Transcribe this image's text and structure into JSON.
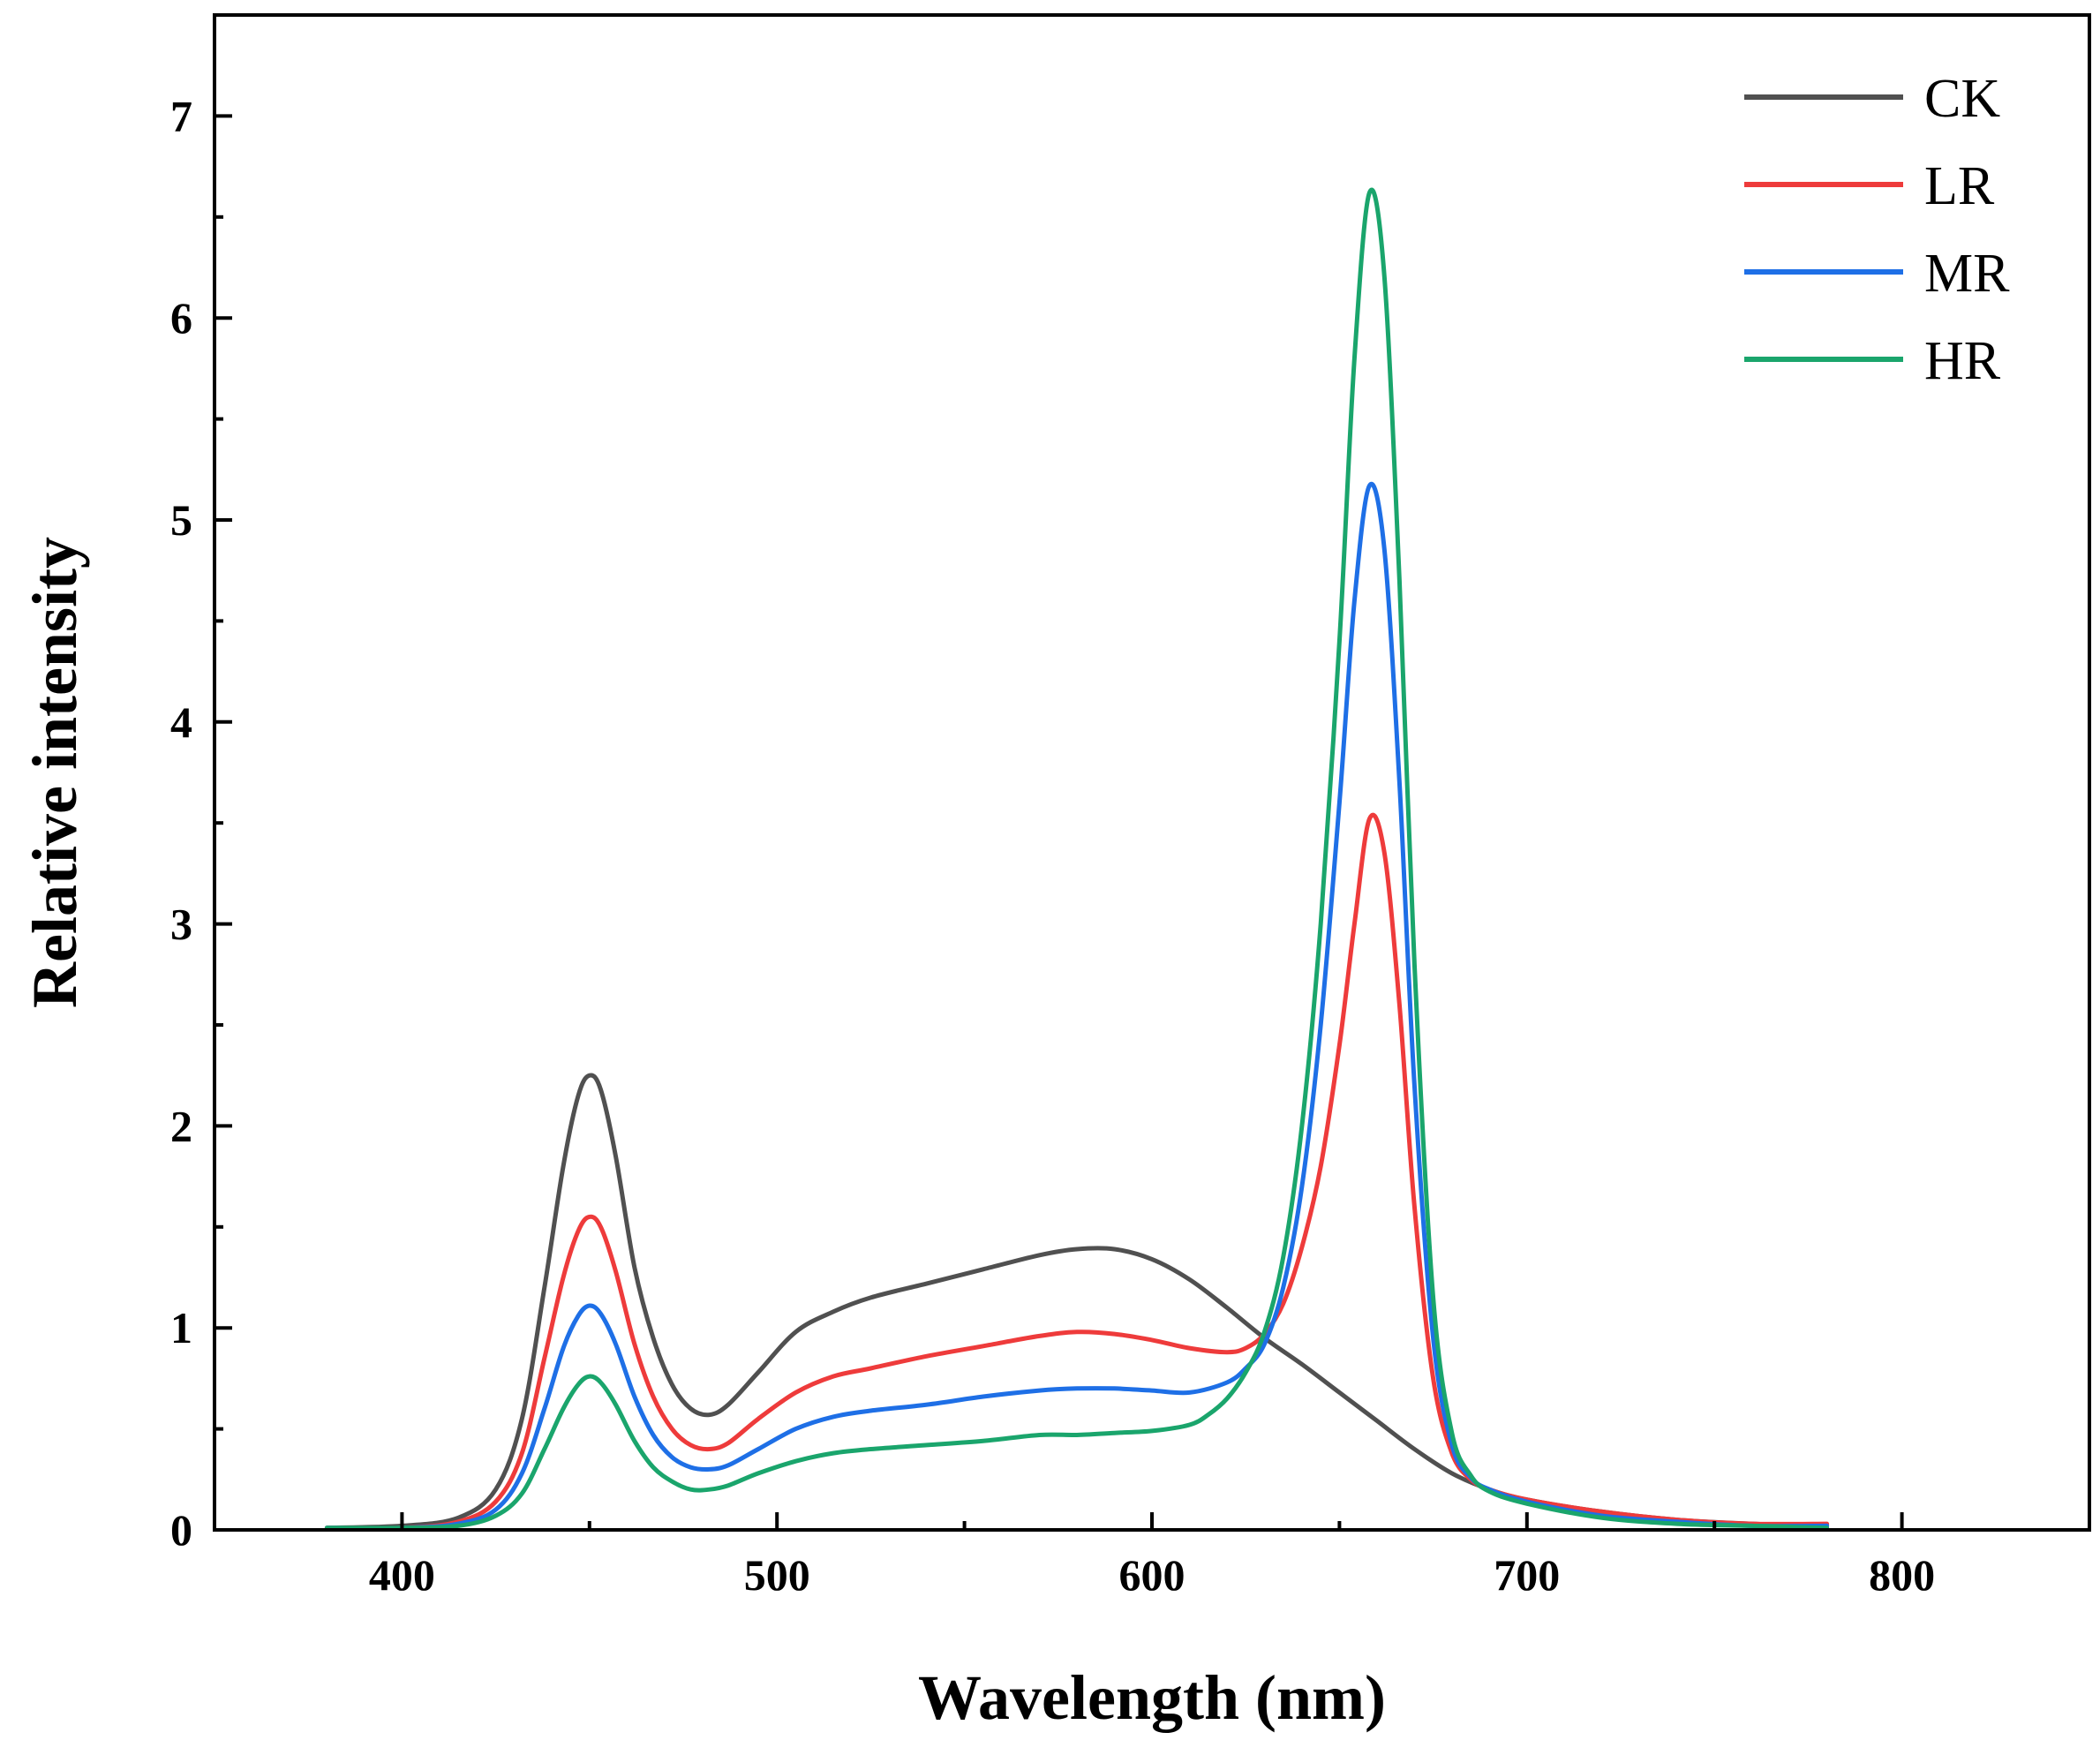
{
  "chart_data": {
    "type": "line",
    "title": "",
    "xlabel": "Wavelength (nm)",
    "ylabel": "Relative intensity",
    "xlim": [
      350,
      850
    ],
    "ylim": [
      0,
      7.5
    ],
    "xticks": [
      400,
      500,
      600,
      700,
      800
    ],
    "yticks": [
      0,
      1,
      2,
      3,
      4,
      5,
      6,
      7
    ],
    "legend_position": "top-right",
    "grid": false,
    "series": [
      {
        "name": "CK",
        "color": "#505050",
        "points": [
          [
            380,
            0.01
          ],
          [
            400,
            0.02
          ],
          [
            415,
            0.06
          ],
          [
            425,
            0.2
          ],
          [
            432,
            0.55
          ],
          [
            438,
            1.2
          ],
          [
            443,
            1.8
          ],
          [
            447,
            2.15
          ],
          [
            450,
            2.25
          ],
          [
            453,
            2.18
          ],
          [
            457,
            1.85
          ],
          [
            462,
            1.3
          ],
          [
            467,
            0.95
          ],
          [
            472,
            0.72
          ],
          [
            477,
            0.6
          ],
          [
            482,
            0.57
          ],
          [
            487,
            0.62
          ],
          [
            495,
            0.78
          ],
          [
            505,
            0.98
          ],
          [
            515,
            1.08
          ],
          [
            525,
            1.15
          ],
          [
            540,
            1.22
          ],
          [
            555,
            1.29
          ],
          [
            570,
            1.36
          ],
          [
            580,
            1.39
          ],
          [
            590,
            1.39
          ],
          [
            600,
            1.34
          ],
          [
            610,
            1.24
          ],
          [
            620,
            1.1
          ],
          [
            630,
            0.95
          ],
          [
            640,
            0.82
          ],
          [
            650,
            0.68
          ],
          [
            660,
            0.54
          ],
          [
            670,
            0.4
          ],
          [
            680,
            0.28
          ],
          [
            690,
            0.2
          ],
          [
            700,
            0.15
          ],
          [
            720,
            0.09
          ],
          [
            740,
            0.05
          ],
          [
            760,
            0.03
          ],
          [
            780,
            0.02
          ]
        ]
      },
      {
        "name": "LR",
        "color": "#ee3b3b",
        "points": [
          [
            380,
            0.01
          ],
          [
            400,
            0.01
          ],
          [
            415,
            0.04
          ],
          [
            425,
            0.14
          ],
          [
            432,
            0.38
          ],
          [
            438,
            0.85
          ],
          [
            443,
            1.25
          ],
          [
            447,
            1.48
          ],
          [
            450,
            1.55
          ],
          [
            453,
            1.5
          ],
          [
            457,
            1.28
          ],
          [
            462,
            0.92
          ],
          [
            467,
            0.66
          ],
          [
            472,
            0.5
          ],
          [
            477,
            0.42
          ],
          [
            482,
            0.4
          ],
          [
            487,
            0.43
          ],
          [
            495,
            0.55
          ],
          [
            505,
            0.68
          ],
          [
            515,
            0.76
          ],
          [
            525,
            0.8
          ],
          [
            540,
            0.86
          ],
          [
            555,
            0.91
          ],
          [
            570,
            0.96
          ],
          [
            580,
            0.98
          ],
          [
            590,
            0.97
          ],
          [
            600,
            0.94
          ],
          [
            610,
            0.9
          ],
          [
            620,
            0.88
          ],
          [
            625,
            0.9
          ],
          [
            630,
            0.97
          ],
          [
            635,
            1.12
          ],
          [
            640,
            1.4
          ],
          [
            645,
            1.8
          ],
          [
            650,
            2.4
          ],
          [
            654,
            3.0
          ],
          [
            658,
            3.52
          ],
          [
            662,
            3.35
          ],
          [
            666,
            2.6
          ],
          [
            670,
            1.6
          ],
          [
            675,
            0.75
          ],
          [
            680,
            0.38
          ],
          [
            685,
            0.25
          ],
          [
            690,
            0.2
          ],
          [
            700,
            0.15
          ],
          [
            720,
            0.09
          ],
          [
            740,
            0.05
          ],
          [
            760,
            0.03
          ],
          [
            780,
            0.03
          ]
        ]
      },
      {
        "name": "MR",
        "color": "#1e6fe6",
        "points": [
          [
            380,
            0.01
          ],
          [
            400,
            0.01
          ],
          [
            415,
            0.03
          ],
          [
            425,
            0.1
          ],
          [
            432,
            0.28
          ],
          [
            438,
            0.6
          ],
          [
            443,
            0.9
          ],
          [
            447,
            1.06
          ],
          [
            450,
            1.11
          ],
          [
            453,
            1.07
          ],
          [
            457,
            0.92
          ],
          [
            462,
            0.66
          ],
          [
            467,
            0.47
          ],
          [
            472,
            0.36
          ],
          [
            477,
            0.31
          ],
          [
            482,
            0.3
          ],
          [
            487,
            0.32
          ],
          [
            495,
            0.4
          ],
          [
            505,
            0.5
          ],
          [
            515,
            0.56
          ],
          [
            525,
            0.59
          ],
          [
            540,
            0.62
          ],
          [
            555,
            0.66
          ],
          [
            570,
            0.69
          ],
          [
            580,
            0.7
          ],
          [
            590,
            0.7
          ],
          [
            600,
            0.69
          ],
          [
            610,
            0.68
          ],
          [
            620,
            0.73
          ],
          [
            625,
            0.8
          ],
          [
            630,
            0.92
          ],
          [
            635,
            1.2
          ],
          [
            640,
            1.7
          ],
          [
            645,
            2.5
          ],
          [
            650,
            3.6
          ],
          [
            654,
            4.6
          ],
          [
            658,
            5.17
          ],
          [
            662,
            4.85
          ],
          [
            666,
            3.7
          ],
          [
            670,
            2.2
          ],
          [
            675,
            0.95
          ],
          [
            680,
            0.42
          ],
          [
            685,
            0.26
          ],
          [
            690,
            0.2
          ],
          [
            700,
            0.14
          ],
          [
            720,
            0.07
          ],
          [
            740,
            0.04
          ],
          [
            760,
            0.02
          ],
          [
            780,
            0.02
          ]
        ]
      },
      {
        "name": "HR",
        "color": "#1aa56c",
        "points": [
          [
            380,
            0.01
          ],
          [
            400,
            0.01
          ],
          [
            415,
            0.02
          ],
          [
            425,
            0.07
          ],
          [
            432,
            0.18
          ],
          [
            438,
            0.4
          ],
          [
            443,
            0.6
          ],
          [
            447,
            0.72
          ],
          [
            450,
            0.76
          ],
          [
            453,
            0.73
          ],
          [
            457,
            0.62
          ],
          [
            462,
            0.44
          ],
          [
            467,
            0.31
          ],
          [
            472,
            0.24
          ],
          [
            477,
            0.2
          ],
          [
            482,
            0.2
          ],
          [
            487,
            0.22
          ],
          [
            495,
            0.28
          ],
          [
            505,
            0.34
          ],
          [
            515,
            0.38
          ],
          [
            525,
            0.4
          ],
          [
            540,
            0.42
          ],
          [
            555,
            0.44
          ],
          [
            570,
            0.47
          ],
          [
            580,
            0.47
          ],
          [
            590,
            0.48
          ],
          [
            600,
            0.49
          ],
          [
            610,
            0.52
          ],
          [
            615,
            0.57
          ],
          [
            620,
            0.65
          ],
          [
            625,
            0.78
          ],
          [
            630,
            0.98
          ],
          [
            635,
            1.35
          ],
          [
            640,
            2.0
          ],
          [
            645,
            3.0
          ],
          [
            650,
            4.4
          ],
          [
            654,
            5.8
          ],
          [
            658,
            6.62
          ],
          [
            662,
            6.2
          ],
          [
            666,
            4.7
          ],
          [
            670,
            2.8
          ],
          [
            675,
            1.15
          ],
          [
            680,
            0.48
          ],
          [
            685,
            0.27
          ],
          [
            690,
            0.19
          ],
          [
            700,
            0.13
          ],
          [
            720,
            0.06
          ],
          [
            740,
            0.03
          ],
          [
            760,
            0.02
          ],
          [
            780,
            0.01
          ]
        ]
      }
    ]
  }
}
